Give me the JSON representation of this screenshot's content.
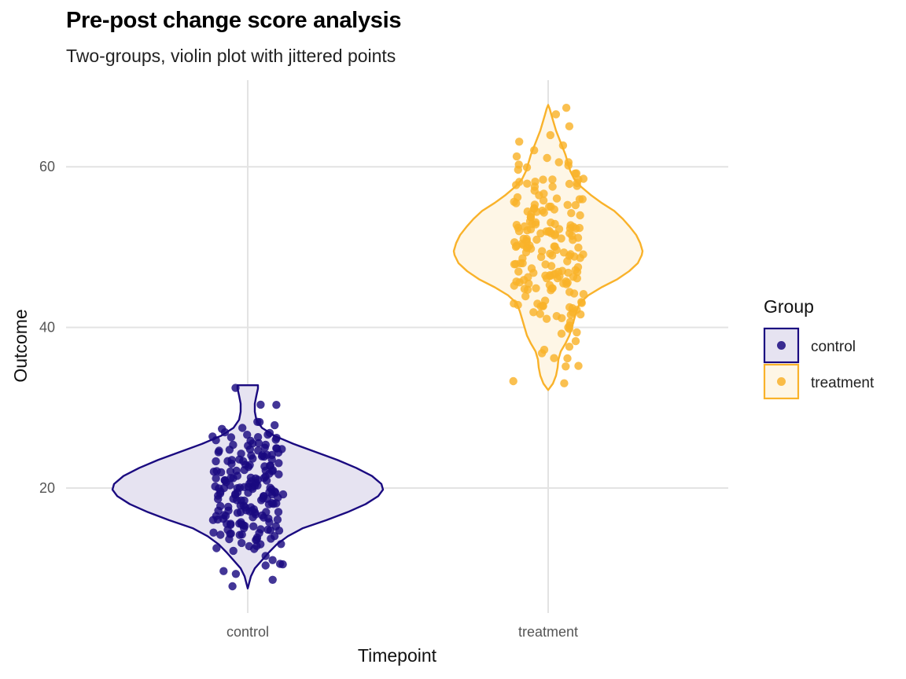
{
  "title": "Pre-post change score analysis",
  "subtitle": "Two-groups, violin plot with jittered points",
  "colors": {
    "control": "#1A0A80",
    "treatment": "#F9B22A",
    "grid": "#E3E3E3"
  },
  "chart_data": {
    "type": "violin",
    "xlabel": "Timepoint",
    "ylabel": "Outcome",
    "categories": [
      "control",
      "treatment"
    ],
    "yticks": [
      "20",
      "40",
      "60"
    ],
    "ylim": [
      5,
      70
    ],
    "grid": true,
    "legend": {
      "title": "Group",
      "position": "right",
      "entries": [
        "control",
        "treatment"
      ]
    },
    "series": [
      {
        "name": "control",
        "min": 7.5,
        "max": 32.8,
        "mode": 19.8,
        "n": 200
      },
      {
        "name": "treatment",
        "min": 32.2,
        "max": 67.7,
        "mode": 49.5,
        "n": 200
      }
    ]
  }
}
